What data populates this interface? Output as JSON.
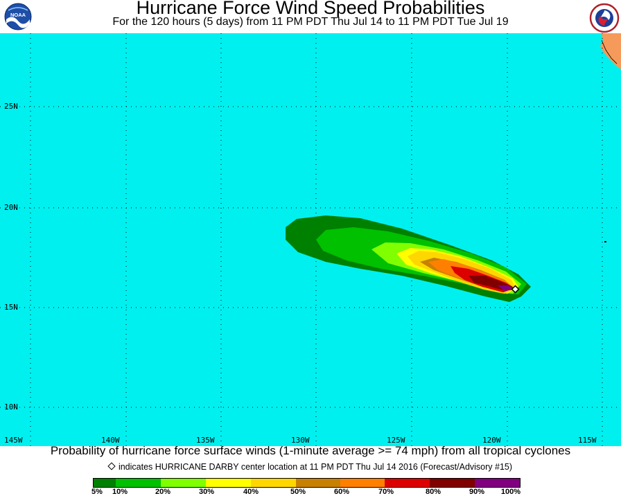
{
  "header": {
    "title": "Hurricane Force Wind Speed Probabilities",
    "subtitle": "For the 120 hours (5 days) from 11 PM PDT Thu Jul 14 to 11 PM PDT Tue Jul 19"
  },
  "logos": {
    "left": {
      "text": "NOAA",
      "icon": "noaa-logo-icon"
    },
    "right": {
      "icon": "nws-logo-icon"
    }
  },
  "map": {
    "ocean_color": "#00f0f0",
    "land_color": "#f59a5a",
    "lat_labels": [
      "25N",
      "20N",
      "15N",
      "10N"
    ],
    "lon_labels": [
      "145W",
      "140W",
      "135W",
      "130W",
      "125W",
      "120W",
      "115W"
    ],
    "storm_center_marker": "diamond"
  },
  "footer": {
    "description": "Probability of hurricane force surface winds (1-minute average >= 74 mph) from all tropical cyclones",
    "marker_note": "indicates HURRICANE DARBY center location at 11 PM PDT Thu Jul 14 2016 (Forecast/Advisory #15)"
  },
  "legend": {
    "colors": [
      "#008000",
      "#00c000",
      "#80ff00",
      "#ffff00",
      "#ffd700",
      "#c88000",
      "#ff8000",
      "#dd0000",
      "#800000",
      "#800080"
    ],
    "labels": [
      "5%",
      "10%",
      "20%",
      "30%",
      "40%",
      "50%",
      "60%",
      "70%",
      "80%",
      "90%",
      "100%"
    ]
  }
}
